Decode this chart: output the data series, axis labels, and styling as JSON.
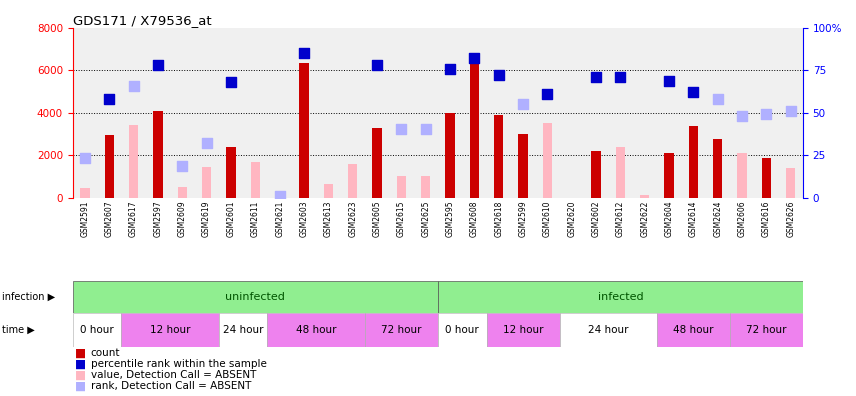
{
  "title": "GDS171 / X79536_at",
  "samples": [
    "GSM2591",
    "GSM2607",
    "GSM2617",
    "GSM2597",
    "GSM2609",
    "GSM2619",
    "GSM2601",
    "GSM2611",
    "GSM2621",
    "GSM2603",
    "GSM2613",
    "GSM2623",
    "GSM2605",
    "GSM2615",
    "GSM2625",
    "GSM2595",
    "GSM2608",
    "GSM2618",
    "GSM2599",
    "GSM2610",
    "GSM2620",
    "GSM2602",
    "GSM2612",
    "GSM2622",
    "GSM2604",
    "GSM2614",
    "GSM2624",
    "GSM2606",
    "GSM2616",
    "GSM2626"
  ],
  "count_present": [
    false,
    true,
    false,
    true,
    false,
    false,
    true,
    false,
    false,
    true,
    false,
    false,
    true,
    false,
    false,
    true,
    true,
    true,
    true,
    false,
    false,
    true,
    false,
    false,
    true,
    true,
    true,
    false,
    true,
    false
  ],
  "count_values": [
    0,
    2950,
    0,
    4100,
    0,
    0,
    2380,
    0,
    0,
    6350,
    0,
    0,
    3300,
    0,
    0,
    4000,
    6600,
    3900,
    3000,
    0,
    0,
    2200,
    0,
    0,
    2100,
    3400,
    2750,
    0,
    1900,
    0
  ],
  "absent_bar_values": [
    450,
    0,
    3420,
    0,
    500,
    1460,
    0,
    1700,
    0,
    0,
    670,
    1600,
    0,
    1030,
    1040,
    0,
    0,
    0,
    0,
    3520,
    0,
    0,
    2380,
    150,
    0,
    0,
    0,
    2100,
    0,
    1400
  ],
  "rank_present": [
    false,
    true,
    false,
    true,
    false,
    false,
    true,
    false,
    false,
    true,
    false,
    false,
    true,
    false,
    false,
    true,
    true,
    true,
    false,
    true,
    false,
    true,
    true,
    false,
    true,
    true,
    false,
    false,
    false,
    false
  ],
  "rank_values": [
    0,
    4650,
    0,
    6250,
    0,
    0,
    5450,
    0,
    0,
    6800,
    0,
    0,
    6250,
    0,
    0,
    6050,
    6600,
    5800,
    0,
    4900,
    0,
    5700,
    5700,
    0,
    5500,
    5000,
    0,
    0,
    0,
    0
  ],
  "absent_rank_values": [
    1900,
    0,
    5250,
    0,
    1500,
    2600,
    0,
    0,
    100,
    0,
    0,
    0,
    0,
    3250,
    3250,
    0,
    0,
    0,
    4400,
    0,
    0,
    0,
    0,
    0,
    0,
    0,
    4650,
    3850,
    3950,
    4100
  ],
  "bar_color_present": "#cc0000",
  "bar_color_absent": "#ffb6c1",
  "dot_color_present": "#0000cc",
  "dot_color_absent": "#b0b0ff",
  "infection_groups": [
    {
      "label": "uninfected",
      "start": 0,
      "end": 14
    },
    {
      "label": "infected",
      "start": 15,
      "end": 29
    }
  ],
  "time_groups": [
    {
      "label": "0 hour",
      "start": 0,
      "end": 1,
      "color": "#ffffff"
    },
    {
      "label": "12 hour",
      "start": 2,
      "end": 5,
      "color": "#ee82ee"
    },
    {
      "label": "24 hour",
      "start": 6,
      "end": 7,
      "color": "#ffffff"
    },
    {
      "label": "48 hour",
      "start": 8,
      "end": 11,
      "color": "#ee82ee"
    },
    {
      "label": "72 hour",
      "start": 12,
      "end": 14,
      "color": "#ee82ee"
    },
    {
      "label": "0 hour",
      "start": 15,
      "end": 16,
      "color": "#ffffff"
    },
    {
      "label": "12 hour",
      "start": 17,
      "end": 19,
      "color": "#ee82ee"
    },
    {
      "label": "24 hour",
      "start": 20,
      "end": 23,
      "color": "#ffffff"
    },
    {
      "label": "48 hour",
      "start": 24,
      "end": 26,
      "color": "#ee82ee"
    },
    {
      "label": "72 hour",
      "start": 27,
      "end": 29,
      "color": "#ee82ee"
    }
  ],
  "legend_items": [
    {
      "color": "#cc0000",
      "label": "count"
    },
    {
      "color": "#0000cc",
      "label": "percentile rank within the sample"
    },
    {
      "color": "#ffb6c1",
      "label": "value, Detection Call = ABSENT"
    },
    {
      "color": "#b0b0ff",
      "label": "rank, Detection Call = ABSENT"
    }
  ]
}
